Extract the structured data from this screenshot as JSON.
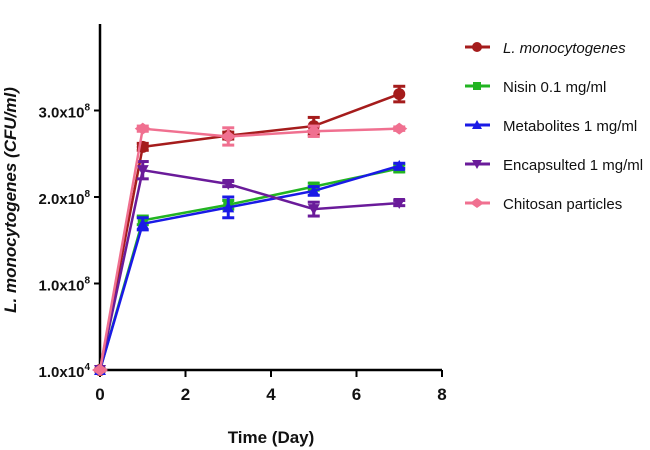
{
  "chart_data": {
    "type": "line",
    "xlabel": "Time (Day)",
    "ylabel": "L. monocytogenes (CFU/ml)",
    "xlim": [
      0,
      8
    ],
    "xticks": [
      0,
      2,
      4,
      6,
      8
    ],
    "ylim": [
      0,
      400000000
    ],
    "yticks": [
      {
        "value": 0,
        "base": "1.0x10",
        "exp": "4"
      },
      {
        "value": 100000000,
        "base": "1.0x10",
        "exp": "8"
      },
      {
        "value": 200000000,
        "base": "2.0x10",
        "exp": "8"
      },
      {
        "value": 300000000,
        "base": "3.0x10",
        "exp": "8"
      }
    ],
    "x": [
      0,
      1,
      3,
      5,
      7
    ],
    "legend_position": "right",
    "grid": false,
    "series": [
      {
        "name": "L. monocytogenes",
        "italic": true,
        "color": "#a51c1c",
        "marker": "circle",
        "values": [
          10000,
          258000000,
          271000000,
          282000000,
          319000000
        ],
        "errors": [
          0,
          4000000,
          4000000,
          10000000,
          9000000
        ]
      },
      {
        "name": "Nisin 0.1 mg/ml",
        "color": "#22b422",
        "marker": "square",
        "values": [
          10000,
          173000000,
          191000000,
          212000000,
          233000000
        ],
        "errors": [
          0,
          5000000,
          5000000,
          4000000,
          4000000
        ]
      },
      {
        "name": "Metabolites 1 mg/ml",
        "color": "#1a1ae6",
        "marker": "triangle-up",
        "values": [
          10000,
          169000000,
          188000000,
          207000000,
          236000000
        ],
        "errors": [
          0,
          7000000,
          12000000,
          5000000,
          3000000
        ]
      },
      {
        "name": "Encapsulted 1 mg/ml",
        "color": "#6a1b9a",
        "marker": "triangle-down",
        "values": [
          10000,
          231000000,
          215000000,
          186000000,
          193000000
        ],
        "errors": [
          0,
          10000000,
          3000000,
          8000000,
          3000000
        ]
      },
      {
        "name": "Chitosan particles",
        "color": "#f07090",
        "marker": "diamond",
        "values": [
          10000,
          279000000,
          270000000,
          276000000,
          279000000
        ],
        "errors": [
          0,
          3000000,
          10000000,
          6000000,
          2000000
        ]
      }
    ]
  }
}
